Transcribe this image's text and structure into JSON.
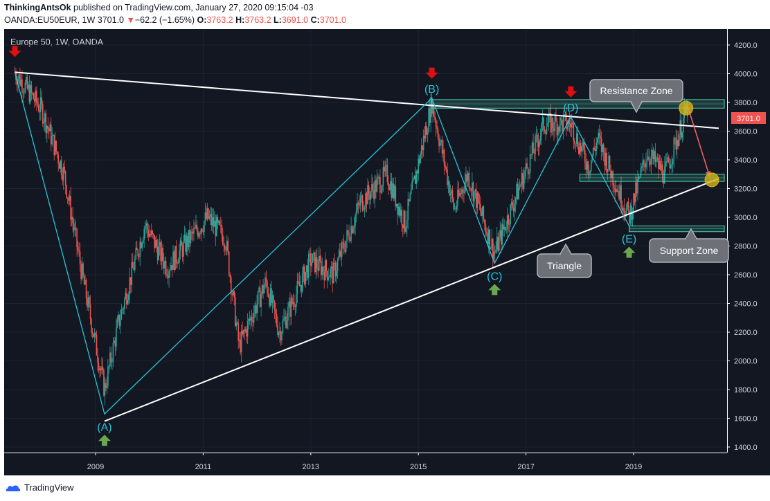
{
  "header": {
    "author": "ThinkingAntsOk",
    "published_text": "published on TradingView.com, January 27, 2020 09:15:04 -03",
    "symbol": "OANDA:EU50EUR, 1W",
    "last_price": "3701.0",
    "change_arrow": "▼",
    "change": "−62.2 (−1.65%)",
    "o_label": "O:",
    "o_value": "3763.2",
    "h_label": "H:",
    "h_value": "3763.2",
    "l_label": "L:",
    "l_value": "3691.0",
    "c_label": "C:",
    "c_value": "3701.0"
  },
  "chart_title": "Europe 50, 1W, OANDA",
  "price_tag": "3701.0",
  "footer": {
    "brand": "TradingView"
  },
  "annotations": {
    "resistance": "Resistance Zone",
    "support": "Support Zone",
    "triangle": "Triangle",
    "A": "(A)",
    "B": "(B)",
    "C": "(C)",
    "D": "(D)",
    "E": "(E)"
  },
  "colors": {
    "background": "#131722",
    "up_candle": "#26a69a",
    "down_candle": "#ef5350",
    "wave_line": "#26c6da",
    "trend_line": "#ffffff",
    "zone": "#4dd0b0",
    "red_arrow": "#e01010",
    "green_arrow": "#6aa84f",
    "projection": "#f06060",
    "target_circle": "#d4b41c"
  },
  "chart_data": {
    "type": "candlestick",
    "x_axis": {
      "type": "date",
      "ticks": [
        "2009",
        "2011",
        "2013",
        "2015",
        "2017",
        "2019"
      ]
    },
    "y_axis": {
      "min": 1300,
      "max": 4300,
      "ticks": [
        1400,
        1600,
        1800,
        2000,
        2200,
        2400,
        2600,
        2800,
        3000,
        3200,
        3400,
        3600,
        3800,
        4000,
        4200
      ],
      "position": "right"
    },
    "waves": [
      {
        "label": "(A)",
        "date": "2009-03",
        "price": 1630,
        "marker": "up"
      },
      {
        "label": "(B)",
        "date": "2015-04",
        "price": 3830,
        "marker": "down"
      },
      {
        "label": "(C)",
        "date": "2016-06",
        "price": 2680,
        "marker": "up"
      },
      {
        "label": "(D)",
        "date": "2017-11",
        "price": 3700,
        "marker": "down"
      },
      {
        "label": "(E)",
        "date": "2018-12",
        "price": 2940,
        "marker": "up"
      }
    ],
    "wave_start": {
      "date": "2007-07",
      "price": 4010,
      "marker": "down"
    },
    "trend_lines": [
      {
        "name": "upper",
        "from": {
          "date": "2007-07",
          "price": 4010
        },
        "to": {
          "date": "2020-08",
          "price": 3620
        }
      },
      {
        "name": "lower",
        "from": {
          "date": "2009-03",
          "price": 1580
        },
        "to": {
          "date": "2020-08",
          "price": 3270
        }
      }
    ],
    "zones": [
      {
        "name": "Resistance Zone",
        "from": "2015-04",
        "price_low": 3760,
        "price_high": 3820
      },
      {
        "name": "Support Zone",
        "from": "2018-12",
        "price_low": 2900,
        "price_high": 2940
      },
      {
        "name": "mid zone",
        "from": "2018-01",
        "price_low": 3250,
        "price_high": 3300
      }
    ],
    "projection": {
      "from": {
        "date": "2020-01",
        "price": 3780
      },
      "to": {
        "date": "2020-06",
        "price": 3280
      }
    },
    "last_price": 3701.0,
    "key_closes": [
      {
        "date": "2007-07",
        "price": 4010
      },
      {
        "date": "2008-01",
        "price": 3750
      },
      {
        "date": "2008-06",
        "price": 3300
      },
      {
        "date": "2008-10",
        "price": 2600
      },
      {
        "date": "2009-03",
        "price": 1800
      },
      {
        "date": "2009-06",
        "price": 2250
      },
      {
        "date": "2009-12",
        "price": 2950
      },
      {
        "date": "2010-05",
        "price": 2650
      },
      {
        "date": "2010-10",
        "price": 2850
      },
      {
        "date": "2011-02",
        "price": 3000
      },
      {
        "date": "2011-06",
        "price": 2850
      },
      {
        "date": "2011-09",
        "price": 2100
      },
      {
        "date": "2012-03",
        "price": 2550
      },
      {
        "date": "2012-06",
        "price": 2200
      },
      {
        "date": "2013-01",
        "price": 2700
      },
      {
        "date": "2013-06",
        "price": 2600
      },
      {
        "date": "2013-12",
        "price": 3100
      },
      {
        "date": "2014-06",
        "price": 3300
      },
      {
        "date": "2014-10",
        "price": 2950
      },
      {
        "date": "2015-04",
        "price": 3800
      },
      {
        "date": "2015-09",
        "price": 3050
      },
      {
        "date": "2015-12",
        "price": 3300
      },
      {
        "date": "2016-06",
        "price": 2750
      },
      {
        "date": "2016-12",
        "price": 3250
      },
      {
        "date": "2017-05",
        "price": 3650
      },
      {
        "date": "2017-11",
        "price": 3650
      },
      {
        "date": "2018-03",
        "price": 3350
      },
      {
        "date": "2018-05",
        "price": 3550
      },
      {
        "date": "2018-12",
        "price": 3000
      },
      {
        "date": "2019-04",
        "price": 3450
      },
      {
        "date": "2019-08",
        "price": 3300
      },
      {
        "date": "2020-01",
        "price": 3760
      }
    ]
  }
}
